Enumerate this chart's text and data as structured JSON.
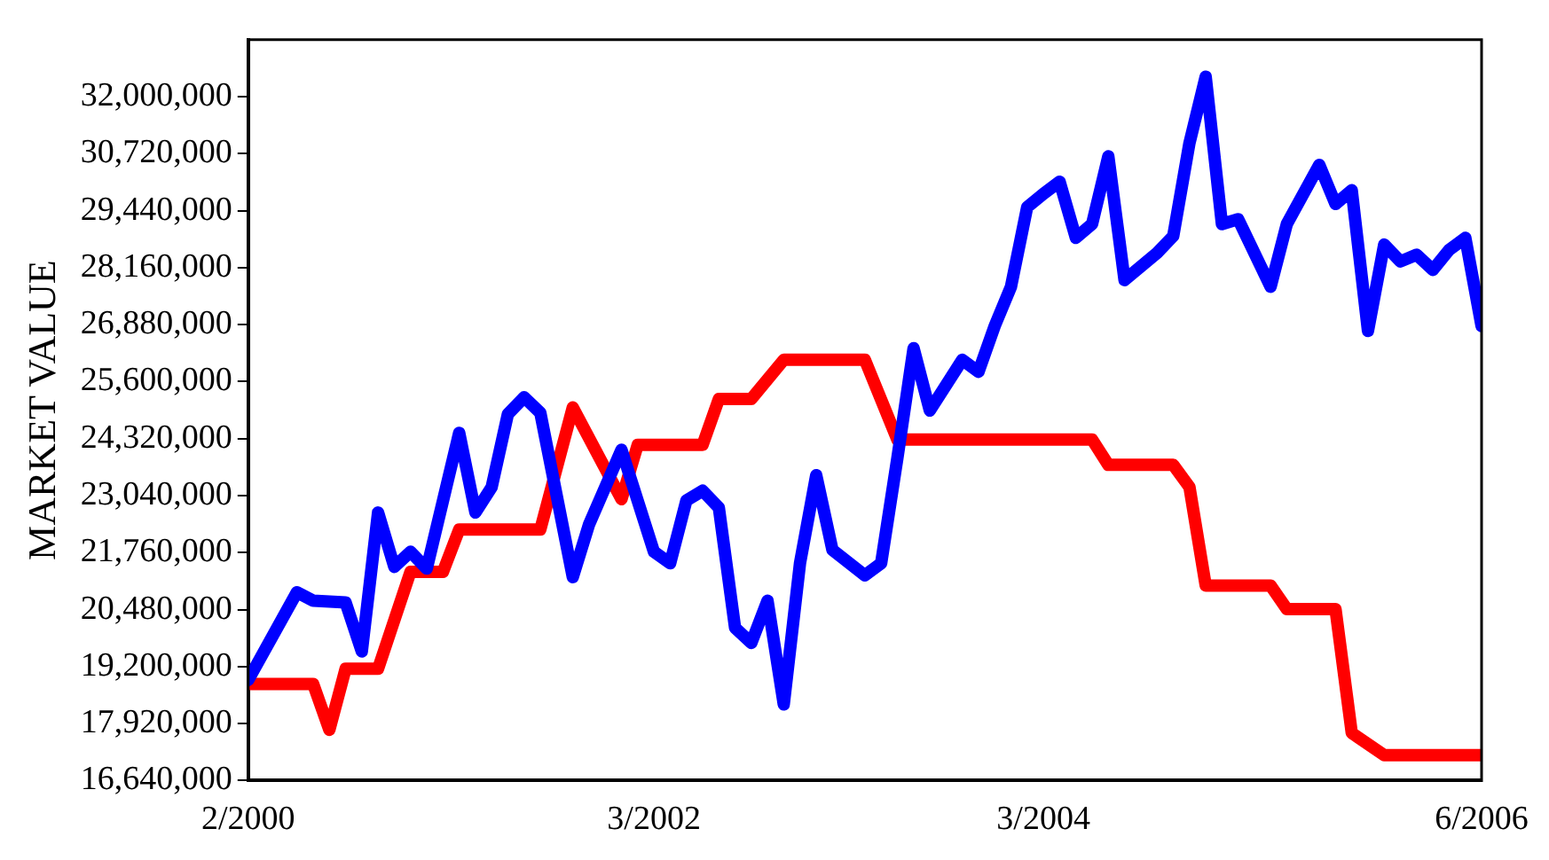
{
  "chart_data": {
    "type": "line",
    "ylabel": "MARKET VALUE",
    "marker": "none",
    "grid": false,
    "xlim": [
      "2000-02",
      "2006-06"
    ],
    "xticks": [
      {
        "value": "2000-02",
        "label": "2/2000"
      },
      {
        "value": "2002-03",
        "label": "3/2002"
      },
      {
        "value": "2004-03",
        "label": "3/2004"
      },
      {
        "value": "2006-06",
        "label": "6/2006"
      }
    ],
    "ylim": [
      16640000,
      33280000
    ],
    "yticks": [
      {
        "value": 16640000,
        "label": "16,640,000"
      },
      {
        "value": 17920000,
        "label": "17,920,000"
      },
      {
        "value": 19200000,
        "label": "19,200,000"
      },
      {
        "value": 20480000,
        "label": "20,480,000"
      },
      {
        "value": 21760000,
        "label": "21,760,000"
      },
      {
        "value": 23040000,
        "label": "23,040,000"
      },
      {
        "value": 24320000,
        "label": "24,320,000"
      },
      {
        "value": 25600000,
        "label": "25,600,000"
      },
      {
        "value": 26880000,
        "label": "26,880,000"
      },
      {
        "value": 28160000,
        "label": "28,160,000"
      },
      {
        "value": 29440000,
        "label": "29,440,000"
      },
      {
        "value": 30720000,
        "label": "30,720,000"
      },
      {
        "value": 32000000,
        "label": "32,000,000"
      }
    ],
    "series": [
      {
        "color": "#0000ff",
        "x": [
          "2000-02",
          "2000-05",
          "2000-06",
          "2000-08",
          "2000-09",
          "2000-10",
          "2000-11",
          "2000-12",
          "2001-01",
          "2001-03",
          "2001-04",
          "2001-05",
          "2001-06",
          "2001-07",
          "2001-08",
          "2001-10",
          "2001-11",
          "2002-01",
          "2002-03",
          "2002-04",
          "2002-05",
          "2002-06",
          "2002-07",
          "2002-08",
          "2002-09",
          "2002-10",
          "2002-11",
          "2002-12",
          "2003-01",
          "2003-02",
          "2003-04",
          "2003-05",
          "2003-06",
          "2003-07",
          "2003-08",
          "2003-10",
          "2003-11",
          "2003-12",
          "2004-01",
          "2004-02",
          "2004-03",
          "2004-04",
          "2004-05",
          "2004-06",
          "2004-07",
          "2004-08",
          "2004-10",
          "2004-11",
          "2004-12",
          "2005-01",
          "2005-02",
          "2005-03",
          "2005-05",
          "2005-06",
          "2005-08",
          "2005-09",
          "2005-10",
          "2005-11",
          "2005-12",
          "2006-01",
          "2006-02",
          "2006-03",
          "2006-04",
          "2006-05",
          "2006-06"
        ],
        "values": [
          18900000,
          20870000,
          20680000,
          20640000,
          19540000,
          22660000,
          21440000,
          21780000,
          21400000,
          24450000,
          22660000,
          23230000,
          24870000,
          25250000,
          24900000,
          21210000,
          22390000,
          24070000,
          21780000,
          21520000,
          22930000,
          23150000,
          22770000,
          20070000,
          19730000,
          20680000,
          18350000,
          21520000,
          23500000,
          21820000,
          21250000,
          21520000,
          23880000,
          26350000,
          24950000,
          26090000,
          25820000,
          26850000,
          27730000,
          29520000,
          29820000,
          30090000,
          28830000,
          29140000,
          30660000,
          27880000,
          28490000,
          28870000,
          30960000,
          32450000,
          29140000,
          29250000,
          27730000,
          29140000,
          30470000,
          29590000,
          29900000,
          26740000,
          28680000,
          28300000,
          28450000,
          28110000,
          28560000,
          28830000,
          26850000
        ]
      },
      {
        "color": "#ff0000",
        "x": [
          "2000-02",
          "2000-06",
          "2000-07",
          "2000-08",
          "2000-10",
          "2000-12",
          "2001-02",
          "2001-03",
          "2001-08",
          "2001-10",
          "2002-01",
          "2002-02",
          "2002-06",
          "2002-07",
          "2002-09",
          "2002-11",
          "2003-04",
          "2003-06",
          "2004-06",
          "2004-07",
          "2004-11",
          "2004-12",
          "2005-01",
          "2005-05",
          "2005-06",
          "2005-09",
          "2005-10",
          "2005-12",
          "2006-06"
        ],
        "values": [
          18810000,
          18810000,
          17780000,
          19150000,
          19150000,
          21330000,
          21330000,
          22280000,
          22280000,
          25020000,
          22960000,
          24180000,
          24180000,
          25210000,
          25210000,
          26090000,
          26090000,
          24300000,
          24300000,
          23730000,
          23730000,
          23230000,
          21020000,
          21020000,
          20490000,
          20490000,
          17710000,
          17210000,
          17210000
        ]
      }
    ]
  }
}
